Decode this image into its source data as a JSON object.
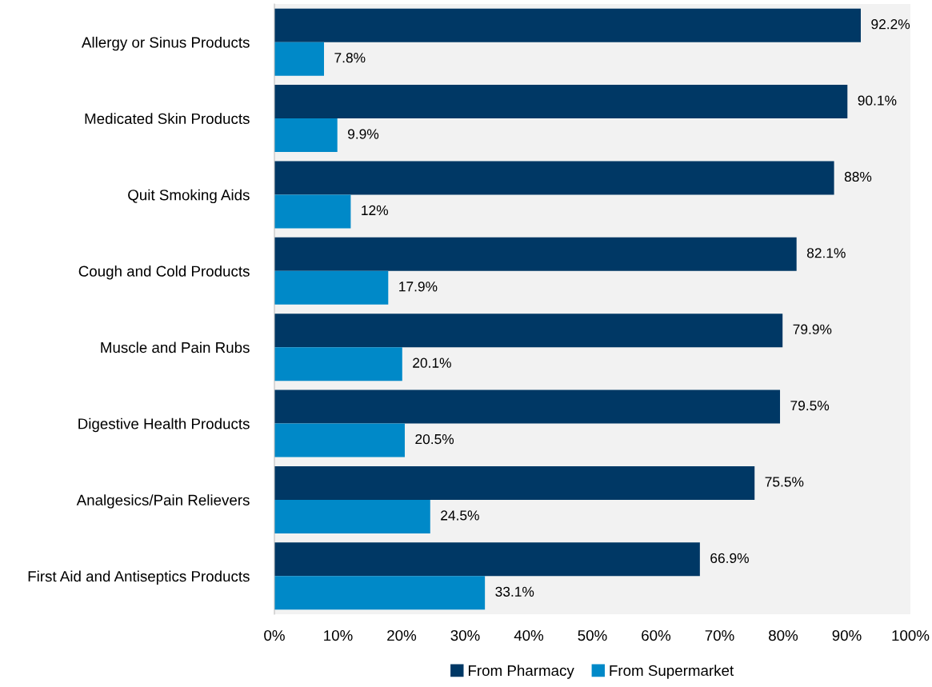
{
  "chart_data": {
    "type": "bar",
    "orientation": "horizontal",
    "categories": [
      "Allergy or Sinus Products",
      "Medicated Skin Products",
      "Quit Smoking Aids",
      "Cough and Cold Products",
      "Muscle and Pain Rubs",
      "Digestive Health Products",
      "Analgesics/Pain Relievers",
      "First Aid and Antiseptics Products"
    ],
    "series": [
      {
        "name": "From Pharmacy",
        "color": "#003865",
        "values": [
          92.2,
          90.1,
          88,
          82.1,
          79.9,
          79.5,
          75.5,
          66.9
        ],
        "value_labels": [
          "92.2%",
          "90.1%",
          "88%",
          "82.1%",
          "79.9%",
          "79.5%",
          "75.5%",
          "66.9%"
        ]
      },
      {
        "name": "From Supermarket",
        "color": "#0089c8",
        "values": [
          7.8,
          9.9,
          12,
          17.9,
          20.1,
          20.5,
          24.5,
          33.1
        ],
        "value_labels": [
          "7.8%",
          "9.9%",
          "12%",
          "17.9%",
          "20.1%",
          "20.5%",
          "24.5%",
          "33.1%"
        ]
      }
    ],
    "xlim": [
      0,
      100
    ],
    "xticks": [
      {
        "value": 0,
        "label": "0%"
      },
      {
        "value": 10,
        "label": "10%"
      },
      {
        "value": 20,
        "label": "20%"
      },
      {
        "value": 30,
        "label": "30%"
      },
      {
        "value": 40,
        "label": "40%"
      },
      {
        "value": 50,
        "label": "50%"
      },
      {
        "value": 60,
        "label": "60%"
      },
      {
        "value": 70,
        "label": "70%"
      },
      {
        "value": 80,
        "label": "80%"
      },
      {
        "value": 90,
        "label": "90%"
      },
      {
        "value": 100,
        "label": "100%"
      }
    ],
    "legend": "bottom",
    "grid": false
  }
}
